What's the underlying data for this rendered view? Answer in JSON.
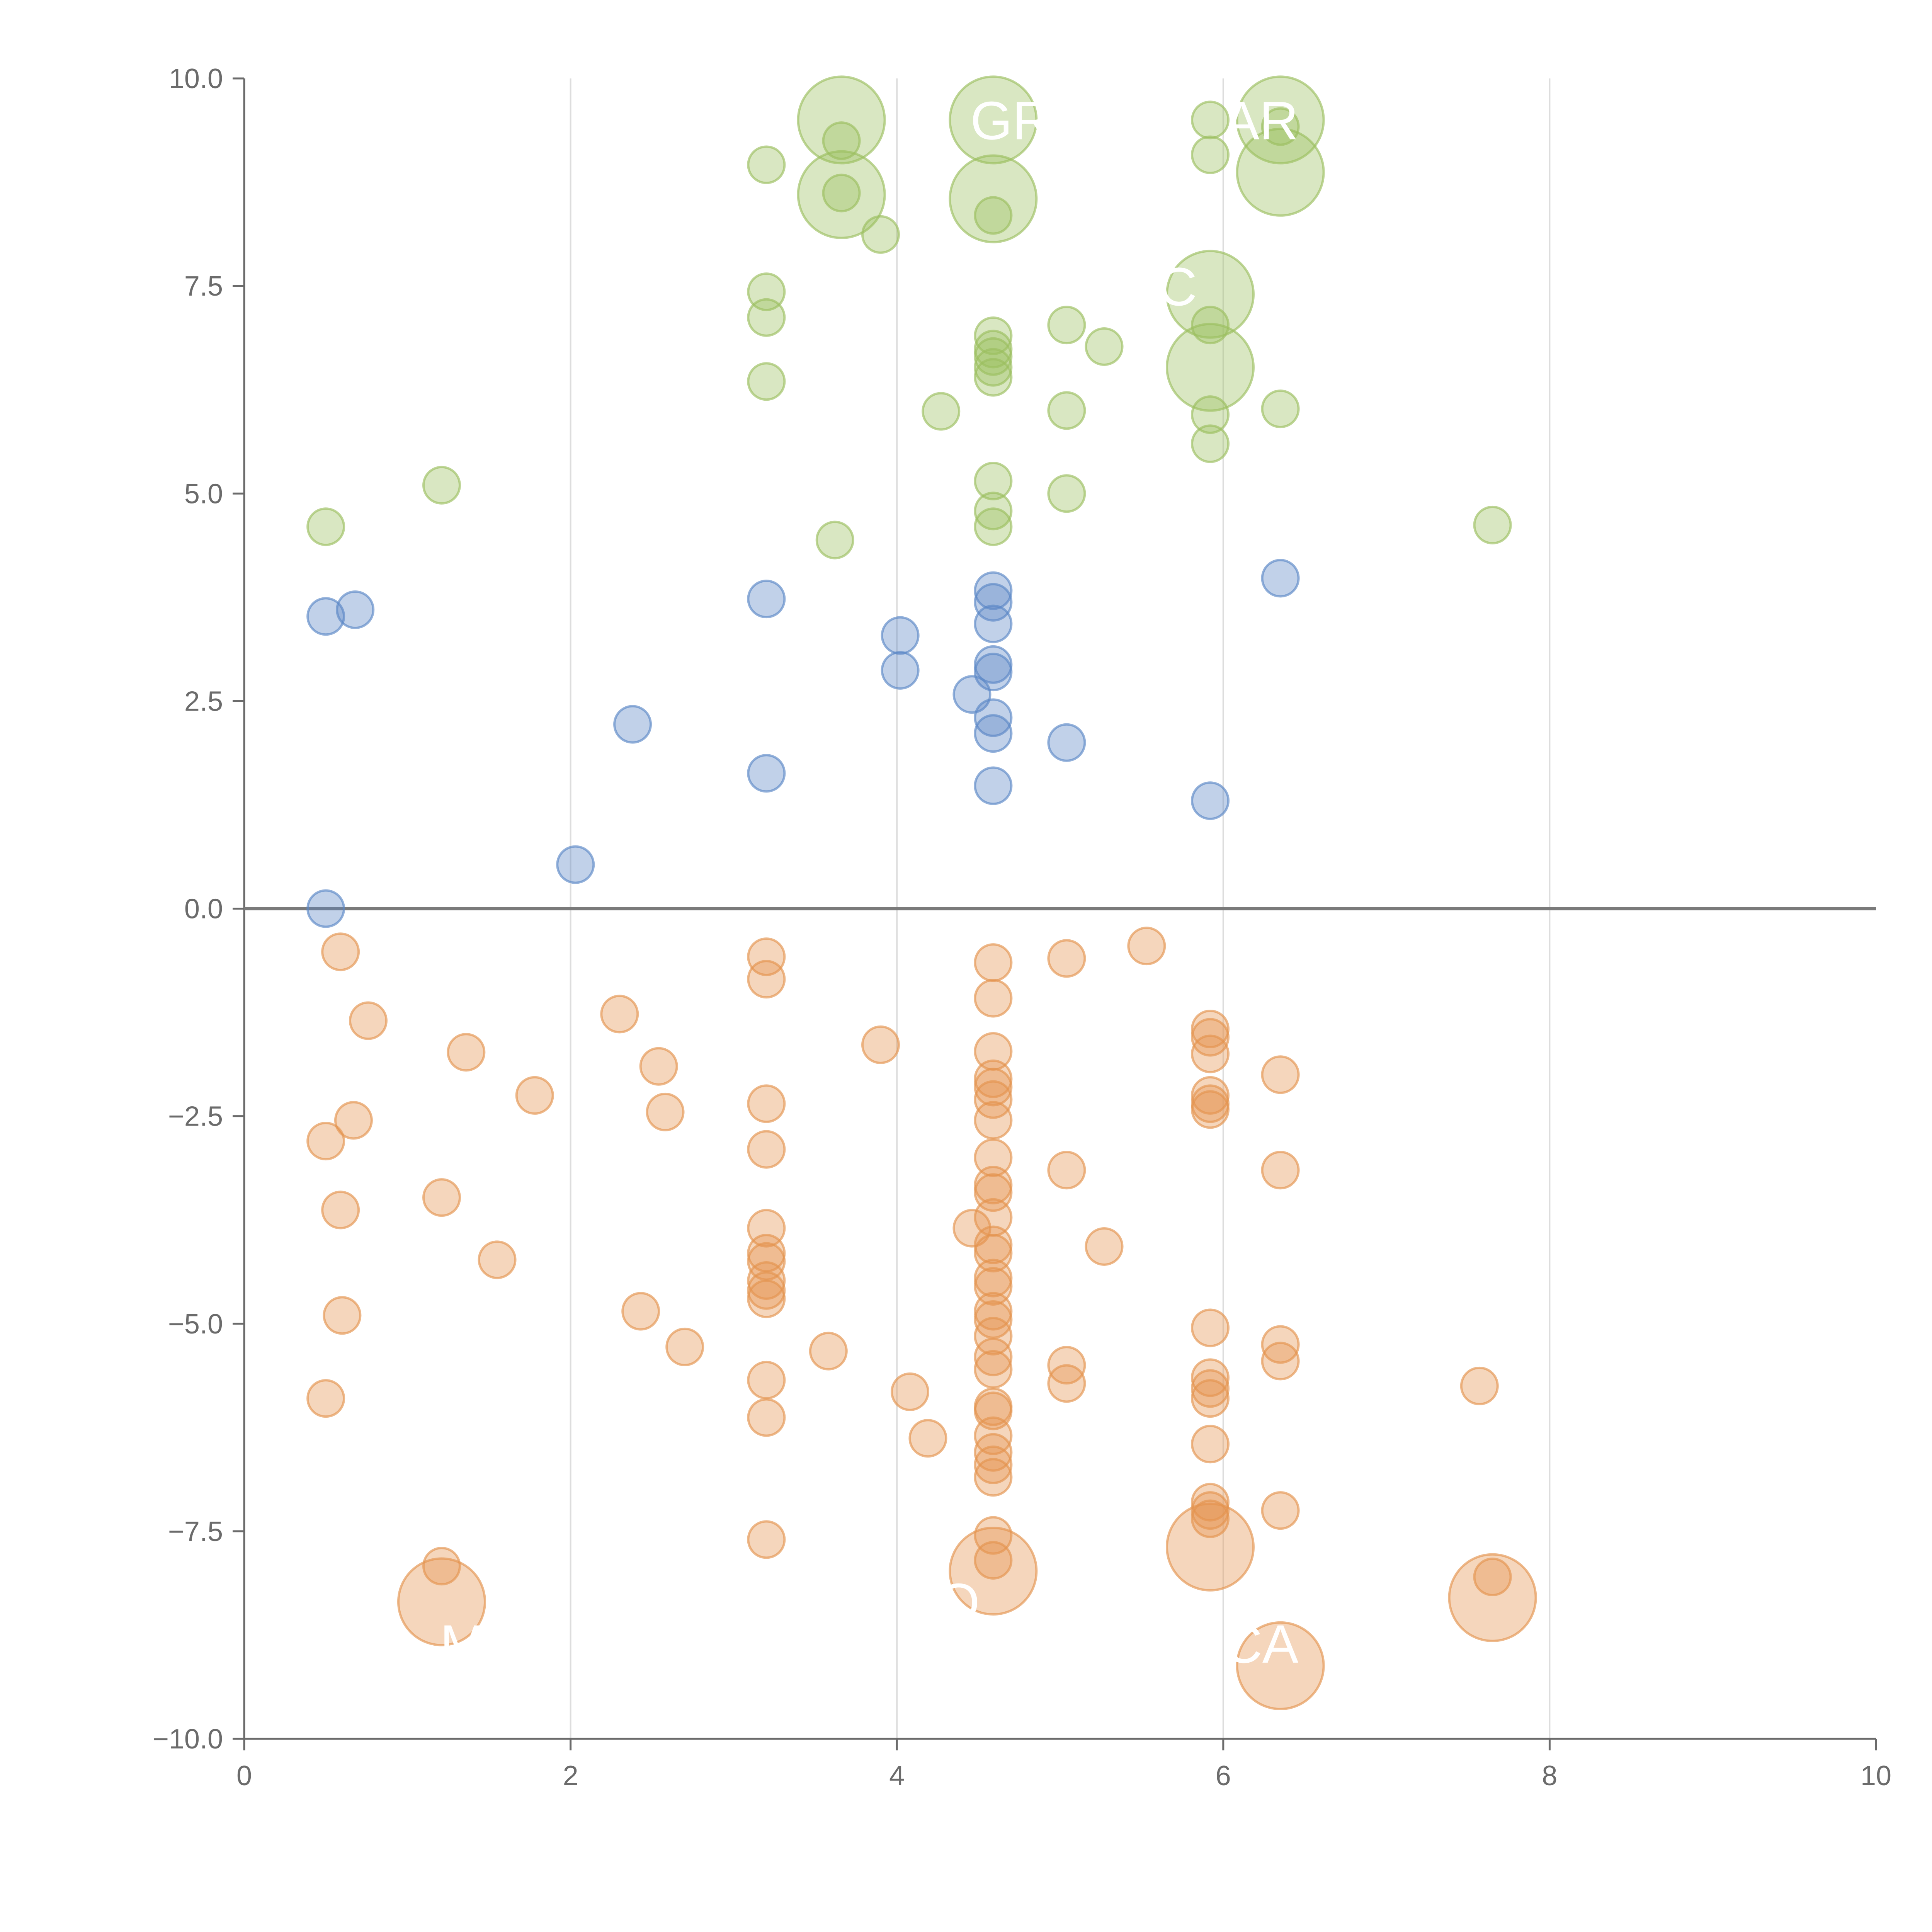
{
  "chart_data": {
    "type": "scatter",
    "title": "",
    "xlabel": "",
    "ylabel": "",
    "xlim": [
      0,
      10
    ],
    "ylim": [
      -10,
      10
    ],
    "grid": "vertical",
    "x_ticks": [
      0,
      2,
      4,
      6,
      8,
      10
    ],
    "x_tick_labels": [
      "0",
      "2",
      "4",
      "6",
      "8",
      "10"
    ],
    "y_ticks": [
      10,
      7.5,
      5,
      2.5,
      0,
      -2.5,
      -5,
      -7.5,
      -10
    ],
    "y_tick_labels": [
      "10.0",
      "7.5",
      "5.0",
      "2.5",
      "0.0",
      "−2.5",
      "−5.0",
      "−7.5",
      "−10.0"
    ],
    "zero_line": 0,
    "colors": {
      "green": "#9bbf5f",
      "blue": "#5b87c6",
      "orange": "#e4944f",
      "grid": "#dddddd",
      "axis": "#6b6b6b",
      "zero": "#7a7a7a"
    },
    "series": [
      {
        "name": "green",
        "color": "#9bbf5f",
        "points": [
          [
            3.66,
            9.5,
            2
          ],
          [
            3.66,
            8.6,
            2
          ],
          [
            4.59,
            9.5,
            2
          ],
          [
            4.59,
            8.55,
            2
          ],
          [
            5.92,
            7.4,
            2
          ],
          [
            5.92,
            6.52,
            2
          ],
          [
            6.35,
            9.5,
            2
          ],
          [
            6.35,
            8.87,
            2
          ],
          [
            3.66,
            9.25,
            1
          ],
          [
            3.66,
            8.62,
            1
          ],
          [
            3.2,
            8.96,
            1
          ],
          [
            3.9,
            8.12,
            1
          ],
          [
            3.2,
            7.43,
            1
          ],
          [
            3.2,
            7.12,
            1
          ],
          [
            3.2,
            6.35,
            1
          ],
          [
            4.27,
            5.99,
            1
          ],
          [
            4.59,
            8.35,
            1
          ],
          [
            4.59,
            6.9,
            1
          ],
          [
            4.59,
            6.74,
            1
          ],
          [
            4.59,
            6.65,
            1
          ],
          [
            4.59,
            6.52,
            1
          ],
          [
            4.59,
            6.4,
            1
          ],
          [
            4.59,
            5.15,
            1
          ],
          [
            4.59,
            4.79,
            1
          ],
          [
            4.59,
            4.6,
            1
          ],
          [
            5.04,
            7.03,
            1
          ],
          [
            5.27,
            6.77,
            1
          ],
          [
            5.04,
            6.0,
            1
          ],
          [
            5.04,
            5.0,
            1
          ],
          [
            5.92,
            9.5,
            1
          ],
          [
            5.92,
            9.08,
            1
          ],
          [
            5.92,
            7.03,
            1
          ],
          [
            5.92,
            5.95,
            1
          ],
          [
            5.92,
            5.6,
            1
          ],
          [
            6.35,
            9.42,
            1
          ],
          [
            6.35,
            6.02,
            1
          ],
          [
            3.62,
            4.44,
            1
          ],
          [
            1.21,
            5.1,
            1
          ],
          [
            0.5,
            4.6,
            1
          ],
          [
            7.65,
            4.62,
            1
          ]
        ]
      },
      {
        "name": "blue",
        "color": "#5b87c6",
        "points": [
          [
            0.5,
            3.52,
            1
          ],
          [
            0.68,
            3.6,
            1
          ],
          [
            3.2,
            3.73,
            1
          ],
          [
            4.02,
            3.29,
            1
          ],
          [
            4.02,
            2.87,
            1
          ],
          [
            4.59,
            3.83,
            1
          ],
          [
            4.59,
            3.69,
            1
          ],
          [
            4.59,
            3.43,
            1
          ],
          [
            4.59,
            2.94,
            1
          ],
          [
            4.59,
            2.85,
            1
          ],
          [
            4.46,
            2.58,
            1
          ],
          [
            4.59,
            2.3,
            1
          ],
          [
            4.59,
            2.11,
            1
          ],
          [
            2.38,
            2.22,
            1
          ],
          [
            5.04,
            2.0,
            1
          ],
          [
            3.2,
            1.63,
            1
          ],
          [
            4.59,
            1.48,
            1
          ],
          [
            5.92,
            1.3,
            1
          ],
          [
            6.35,
            3.98,
            1
          ],
          [
            2.03,
            0.53,
            1
          ],
          [
            0.5,
            0.0,
            1
          ]
        ]
      },
      {
        "name": "orange",
        "color": "#e4944f",
        "points": [
          [
            1.21,
            -8.35,
            2
          ],
          [
            4.59,
            -7.98,
            2
          ],
          [
            5.92,
            -7.69,
            2
          ],
          [
            6.35,
            -9.12,
            2
          ],
          [
            7.65,
            -8.3,
            2
          ],
          [
            0.59,
            -0.52,
            1
          ],
          [
            0.76,
            -1.35,
            1
          ],
          [
            1.36,
            -1.73,
            1
          ],
          [
            1.78,
            -2.25,
            1
          ],
          [
            0.67,
            -2.55,
            1
          ],
          [
            0.5,
            -2.8,
            1
          ],
          [
            0.59,
            -3.63,
            1
          ],
          [
            1.21,
            -3.48,
            1
          ],
          [
            1.55,
            -4.23,
            1
          ],
          [
            0.6,
            -4.9,
            1
          ],
          [
            0.5,
            -5.9,
            1
          ],
          [
            1.21,
            -7.92,
            1
          ],
          [
            2.3,
            -1.27,
            1
          ],
          [
            2.54,
            -1.9,
            1
          ],
          [
            2.58,
            -2.45,
            1
          ],
          [
            2.43,
            -4.85,
            1
          ],
          [
            2.7,
            -5.28,
            1
          ],
          [
            3.2,
            -0.58,
            1
          ],
          [
            3.2,
            -0.85,
            1
          ],
          [
            3.2,
            -2.35,
            1
          ],
          [
            3.2,
            -2.9,
            1
          ],
          [
            3.2,
            -3.85,
            1
          ],
          [
            3.2,
            -4.15,
            1
          ],
          [
            3.2,
            -4.25,
            1
          ],
          [
            3.2,
            -4.48,
            1
          ],
          [
            3.2,
            -4.6,
            1
          ],
          [
            3.2,
            -4.7,
            1
          ],
          [
            3.2,
            -5.68,
            1
          ],
          [
            3.2,
            -6.13,
            1
          ],
          [
            3.2,
            -7.6,
            1
          ],
          [
            3.58,
            -5.33,
            1
          ],
          [
            3.9,
            -1.64,
            1
          ],
          [
            4.08,
            -5.82,
            1
          ],
          [
            4.19,
            -6.38,
            1
          ],
          [
            4.46,
            -3.85,
            1
          ],
          [
            4.59,
            -0.65,
            1
          ],
          [
            4.59,
            -1.08,
            1
          ],
          [
            4.59,
            -1.72,
            1
          ],
          [
            4.59,
            -2.05,
            1
          ],
          [
            4.59,
            -2.15,
            1
          ],
          [
            4.59,
            -2.3,
            1
          ],
          [
            4.59,
            -2.55,
            1
          ],
          [
            4.59,
            -3.0,
            1
          ],
          [
            4.59,
            -3.33,
            1
          ],
          [
            4.59,
            -3.42,
            1
          ],
          [
            4.59,
            -3.72,
            1
          ],
          [
            4.59,
            -4.05,
            1
          ],
          [
            4.59,
            -4.15,
            1
          ],
          [
            4.59,
            -4.45,
            1
          ],
          [
            4.59,
            -4.55,
            1
          ],
          [
            4.59,
            -4.85,
            1
          ],
          [
            4.59,
            -4.95,
            1
          ],
          [
            4.59,
            -5.15,
            1
          ],
          [
            4.59,
            -5.4,
            1
          ],
          [
            4.59,
            -5.55,
            1
          ],
          [
            4.59,
            -6.0,
            1
          ],
          [
            4.59,
            -6.05,
            1
          ],
          [
            4.59,
            -6.35,
            1
          ],
          [
            4.59,
            -6.55,
            1
          ],
          [
            4.59,
            -6.7,
            1
          ],
          [
            4.59,
            -6.85,
            1
          ],
          [
            4.59,
            -7.55,
            1
          ],
          [
            4.59,
            -7.85,
            1
          ],
          [
            5.04,
            -0.6,
            1
          ],
          [
            5.53,
            -0.45,
            1
          ],
          [
            5.04,
            -3.15,
            1
          ],
          [
            5.27,
            -4.07,
            1
          ],
          [
            5.04,
            -5.5,
            1
          ],
          [
            5.04,
            -5.72,
            1
          ],
          [
            5.92,
            -1.45,
            1
          ],
          [
            5.92,
            -1.55,
            1
          ],
          [
            5.92,
            -1.75,
            1
          ],
          [
            5.92,
            -2.25,
            1
          ],
          [
            5.92,
            -2.35,
            1
          ],
          [
            5.92,
            -2.42,
            1
          ],
          [
            5.92,
            -5.05,
            1
          ],
          [
            5.92,
            -5.65,
            1
          ],
          [
            5.92,
            -5.78,
            1
          ],
          [
            5.92,
            -5.9,
            1
          ],
          [
            5.92,
            -6.45,
            1
          ],
          [
            5.92,
            -7.15,
            1
          ],
          [
            5.92,
            -7.25,
            1
          ],
          [
            5.92,
            -7.35,
            1
          ],
          [
            6.35,
            -2.0,
            1
          ],
          [
            6.35,
            -3.15,
            1
          ],
          [
            6.35,
            -5.25,
            1
          ],
          [
            6.35,
            -5.45,
            1
          ],
          [
            6.35,
            -7.25,
            1
          ],
          [
            7.57,
            -5.75,
            1
          ],
          [
            7.65,
            -8.05,
            1
          ]
        ]
      }
    ],
    "annotations": [
      {
        "text": "GR",
        "x": 4.45,
        "y": 9.5
      },
      {
        "text": "AR",
        "x": 6.0,
        "y": 9.5
      },
      {
        "text": "C",
        "x": 5.6,
        "y": 7.5
      },
      {
        "text": "M",
        "x": 1.2,
        "y": -8.85
      },
      {
        "text": "O",
        "x": 4.25,
        "y": -8.35
      },
      {
        "text": "CA",
        "x": 6.0,
        "y": -8.85
      }
    ]
  }
}
